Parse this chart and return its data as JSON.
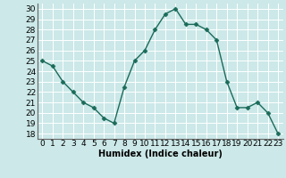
{
  "x": [
    0,
    1,
    2,
    3,
    4,
    5,
    6,
    7,
    8,
    9,
    10,
    11,
    12,
    13,
    14,
    15,
    16,
    17,
    18,
    19,
    20,
    21,
    22,
    23
  ],
  "y": [
    25,
    24.5,
    23,
    22,
    21,
    20.5,
    19.5,
    19,
    22.5,
    25,
    26,
    28,
    29.5,
    30,
    28.5,
    28.5,
    28,
    27,
    23,
    20.5,
    20.5,
    21,
    20,
    18
  ],
  "line_color": "#1a6b5a",
  "marker": "D",
  "marker_size": 2.5,
  "bg_color": "#cce8e8",
  "grid_color": "#ffffff",
  "xlabel": "Humidex (Indice chaleur)",
  "ylim": [
    17.5,
    30.5
  ],
  "xlim": [
    -0.5,
    23.5
  ],
  "yticks": [
    18,
    19,
    20,
    21,
    22,
    23,
    24,
    25,
    26,
    27,
    28,
    29,
    30
  ],
  "xticks": [
    0,
    1,
    2,
    3,
    4,
    5,
    6,
    7,
    8,
    9,
    10,
    11,
    12,
    13,
    14,
    15,
    16,
    17,
    18,
    19,
    20,
    21,
    22,
    23
  ],
  "font_size": 6.5,
  "xlabel_fontsize": 7.0,
  "linewidth": 1.0
}
